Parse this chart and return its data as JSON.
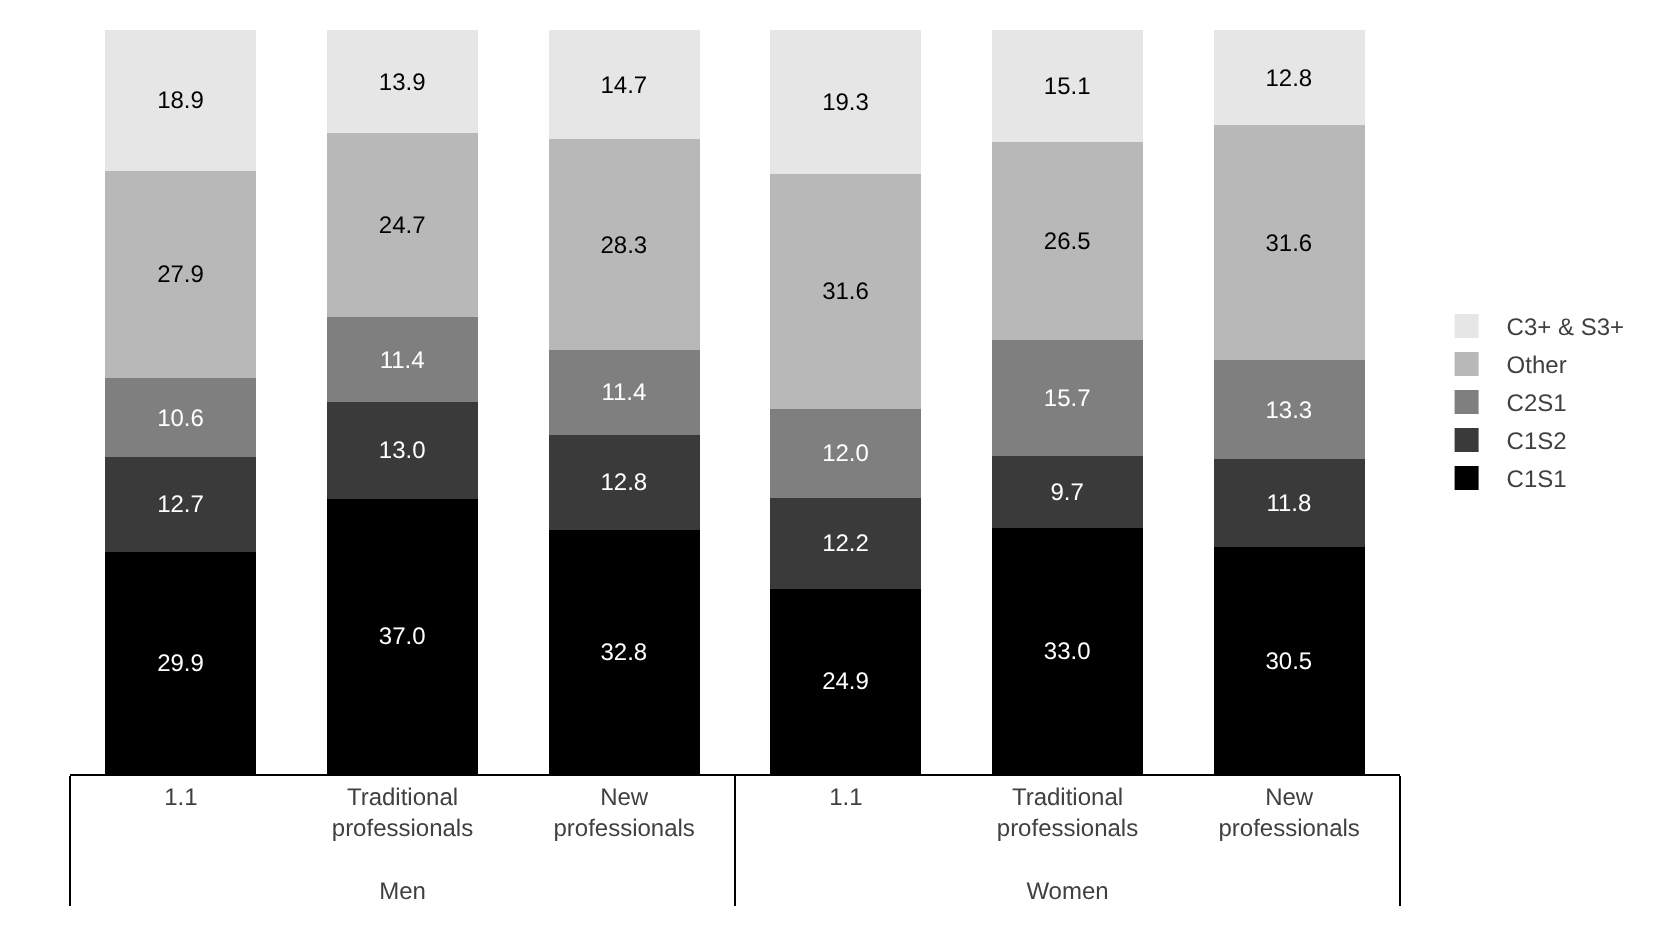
{
  "chart_data": {
    "type": "bar",
    "stacked": true,
    "legend": "right",
    "categories": [
      "1.1",
      "Traditional professionals",
      "New professionals",
      "1.1",
      "Traditional professionals",
      "New professionals"
    ],
    "series": [
      {
        "name": "C1S1",
        "color": "#000000",
        "values": [
          29.9,
          37.0,
          32.8,
          24.9,
          33.0,
          30.5
        ],
        "value_labels": [
          "29.9",
          "37.0",
          "32.8",
          "24.9",
          "33.0",
          "30.5"
        ]
      },
      {
        "name": "C1S2",
        "color": "#3a3a3a",
        "values": [
          12.7,
          13.0,
          12.8,
          12.2,
          9.7,
          11.8
        ],
        "value_labels": [
          "12.7",
          "13.0",
          "12.8",
          "12.2",
          "9.7",
          "11.8"
        ]
      },
      {
        "name": "C2S1",
        "color": "#7f7f7f",
        "values": [
          10.6,
          11.4,
          11.4,
          12.0,
          15.7,
          13.3
        ],
        "value_labels": [
          "10.6",
          "11.4",
          "11.4",
          "12.0",
          "15.7",
          "13.3"
        ]
      },
      {
        "name": "Other",
        "color": "#b8b8b8",
        "values": [
          27.9,
          24.7,
          28.3,
          31.6,
          26.5,
          31.6
        ],
        "value_labels": [
          "27.9",
          "24.7",
          "28.3",
          "31.6",
          "26.5",
          "31.6"
        ]
      },
      {
        "name": "C3+ & S3+",
        "color": "#e6e6e6",
        "values": [
          18.9,
          13.9,
          14.7,
          19.3,
          15.1,
          12.8
        ],
        "value_labels": [
          "18.9",
          "13.9",
          "14.7",
          "19.3",
          "15.1",
          "12.8"
        ]
      }
    ],
    "annotations": [
      "Men",
      "Women"
    ]
  }
}
